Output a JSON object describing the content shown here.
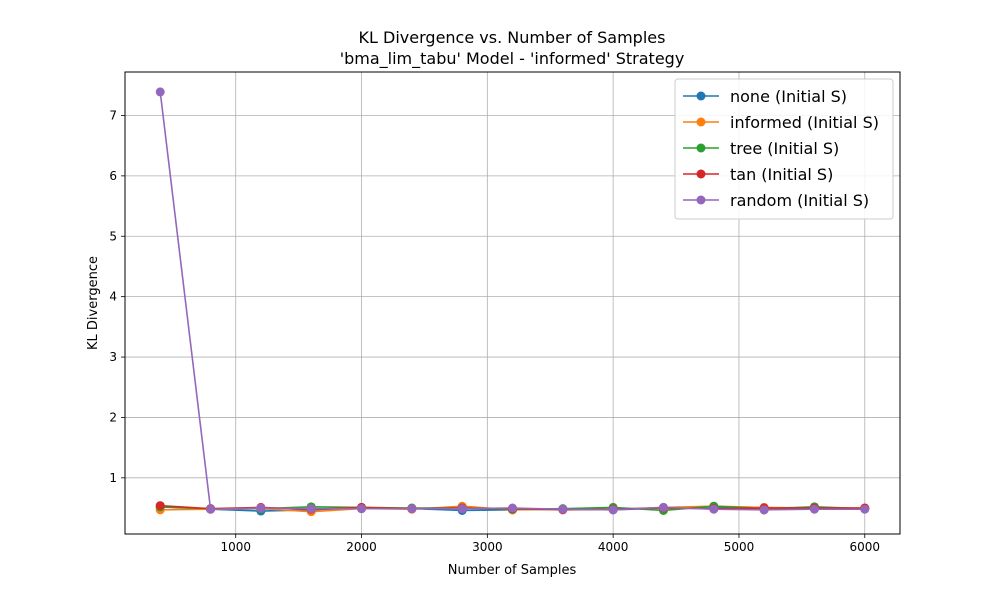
{
  "chart_data": {
    "type": "line",
    "title": "KL Divergence vs. Number of Samples",
    "subtitle": "'bma_lim_tabu' Model - 'informed' Strategy",
    "xlabel": "Number of Samples",
    "ylabel": "KL Divergence",
    "xlim": [
      120,
      6280
    ],
    "ylim": [
      0.07,
      7.72
    ],
    "xticks": [
      1000,
      2000,
      3000,
      4000,
      5000,
      6000
    ],
    "yticks": [
      1,
      2,
      3,
      4,
      5,
      6,
      7
    ],
    "grid": true,
    "legend_position": "top-right",
    "x": [
      400,
      800,
      1200,
      1600,
      2000,
      2400,
      2800,
      3200,
      3600,
      4000,
      4400,
      4800,
      5200,
      5600,
      6000
    ],
    "series": [
      {
        "name": "none (Initial S)",
        "color": "#1f77b4",
        "values": [
          0.52,
          0.48,
          0.45,
          0.47,
          0.5,
          0.49,
          0.46,
          0.47,
          0.48,
          0.47,
          0.5,
          0.52,
          0.47,
          0.5,
          0.49
        ]
      },
      {
        "name": "informed (Initial S)",
        "color": "#ff7f0e",
        "values": [
          0.47,
          0.48,
          0.49,
          0.44,
          0.49,
          0.48,
          0.53,
          0.47,
          0.48,
          0.48,
          0.51,
          0.53,
          0.51,
          0.5,
          0.5
        ]
      },
      {
        "name": "tree (Initial S)",
        "color": "#2ca02c",
        "values": [
          0.52,
          0.49,
          0.49,
          0.52,
          0.51,
          0.5,
          0.5,
          0.48,
          0.49,
          0.51,
          0.46,
          0.53,
          0.49,
          0.52,
          0.49
        ]
      },
      {
        "name": "tan (Initial S)",
        "color": "#d62728",
        "values": [
          0.54,
          0.49,
          0.51,
          0.48,
          0.51,
          0.49,
          0.5,
          0.49,
          0.47,
          0.48,
          0.5,
          0.49,
          0.5,
          0.5,
          0.5
        ]
      },
      {
        "name": "random (Initial S)",
        "color": "#9467bd",
        "values": [
          7.39,
          0.48,
          0.5,
          0.49,
          0.49,
          0.49,
          0.49,
          0.5,
          0.48,
          0.47,
          0.51,
          0.48,
          0.47,
          0.48,
          0.48
        ]
      }
    ]
  }
}
